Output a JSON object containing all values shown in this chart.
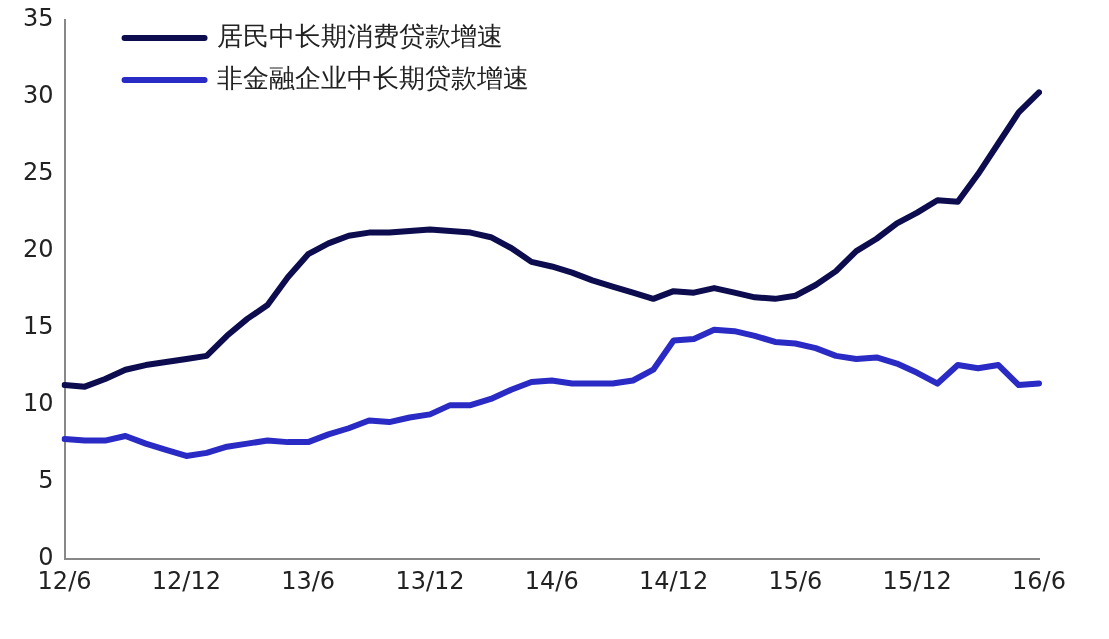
{
  "chart_data": {
    "type": "line",
    "categories": [
      "12/6",
      null,
      null,
      null,
      null,
      null,
      "12/12",
      null,
      null,
      null,
      null,
      null,
      "13/6",
      null,
      null,
      null,
      null,
      null,
      "13/12",
      null,
      null,
      null,
      null,
      null,
      "14/6",
      null,
      null,
      null,
      null,
      null,
      "14/12",
      null,
      null,
      null,
      null,
      null,
      "15/6",
      null,
      null,
      null,
      null,
      null,
      "15/12",
      null,
      null,
      null,
      null,
      null,
      "16/6"
    ],
    "series": [
      {
        "name": "居民中长期消费贷款增速",
        "color": "#0c0c4e",
        "values": [
          11.3,
          11.2,
          11.7,
          12.3,
          12.6,
          12.8,
          13.0,
          13.2,
          14.5,
          15.6,
          16.5,
          18.3,
          19.8,
          20.5,
          21.0,
          21.2,
          21.2,
          21.3,
          21.4,
          21.3,
          21.2,
          20.9,
          20.2,
          19.3,
          19.0,
          18.6,
          18.1,
          17.7,
          17.3,
          16.9,
          17.4,
          17.3,
          17.6,
          17.3,
          17.0,
          16.9,
          17.1,
          17.8,
          18.7,
          20.0,
          20.8,
          21.8,
          22.5,
          23.3,
          23.2,
          25.0,
          27.0,
          29.0,
          30.3
        ]
      },
      {
        "name": "非金融企业中长期贷款增速",
        "color": "#2a2ac4",
        "values": [
          7.8,
          7.7,
          7.7,
          8.0,
          7.5,
          7.1,
          6.7,
          6.9,
          7.3,
          7.5,
          7.7,
          7.6,
          7.6,
          8.1,
          8.5,
          9.0,
          8.9,
          9.2,
          9.4,
          10.0,
          10.0,
          10.4,
          11.0,
          11.5,
          11.6,
          11.4,
          11.4,
          11.4,
          11.6,
          12.3,
          14.2,
          14.3,
          14.9,
          14.8,
          14.5,
          14.1,
          14.0,
          13.7,
          13.2,
          13.0,
          13.1,
          12.7,
          12.1,
          11.4,
          12.6,
          12.4,
          12.6,
          11.3,
          11.4
        ]
      }
    ],
    "ylim": [
      0,
      35
    ],
    "yticks": [
      0,
      5,
      10,
      15,
      20,
      25,
      30,
      35
    ],
    "grid": false,
    "legend": "top left",
    "marker": "none",
    "line_style": "solid"
  }
}
